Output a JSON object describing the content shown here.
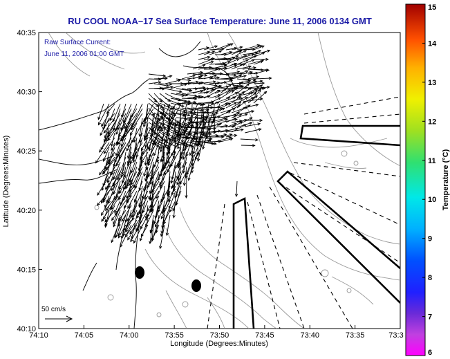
{
  "title": "RU COOL  NOAA–17  Sea Surface Temperature:  June 11, 2006 0134 GMT",
  "current_legend": {
    "line1": "Raw Surface Current:",
    "line2": "June 11, 2006 01:00 GMT"
  },
  "axes": {
    "xlabel": "Longitude (Degrees:Minutes)",
    "ylabel": "Latitude (Degrees:Minutes)",
    "x_ticks": [
      "74:10",
      "74:05",
      "74:00",
      "73:55",
      "73:50",
      "73:45",
      "73:40",
      "73:35",
      "73:3"
    ],
    "y_ticks": [
      "40:35",
      "40:30",
      "40:25",
      "40:20",
      "40:15",
      "40:10"
    ]
  },
  "scale": {
    "label": "50 cm/s"
  },
  "colorbar": {
    "label": "Temperature (°C)",
    "ticks": [
      "15",
      "14",
      "13",
      "12",
      "11",
      "10",
      "9",
      "8",
      "7",
      "6"
    ],
    "min": 6,
    "max": 15
  },
  "colors": {
    "title": "#1a1aa6",
    "contour": "#9a9a9a",
    "coast": "#111111"
  }
}
